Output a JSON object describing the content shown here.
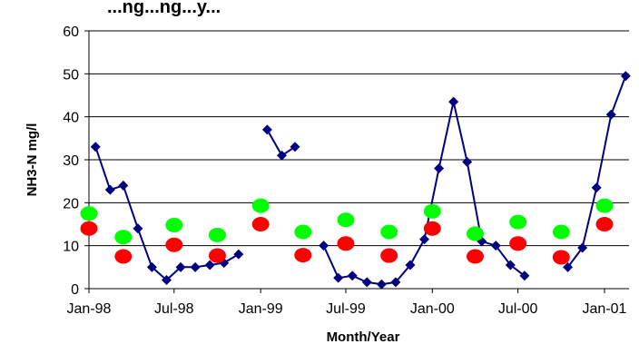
{
  "chart_data": {
    "type": "line",
    "title": "...ng...ng...y...",
    "xlabel": "Month/Year",
    "ylabel": "NH3-N mg/l",
    "ylim": [
      0,
      60
    ],
    "yticks": [
      0,
      10,
      20,
      30,
      40,
      50,
      60
    ],
    "x_tick_labels": [
      "Jan-98",
      "Jul-98",
      "Jan-99",
      "Jul-99",
      "Jan-00",
      "Jul-00",
      "Jan-01"
    ],
    "grid": "horizontal",
    "legend": "none",
    "colors": {
      "line": "#000080",
      "red": "#ff0000",
      "green": "#00ff00"
    },
    "series": [
      {
        "style": "line-diamond",
        "segments": [
          [
            [
              "1998-01-15",
              33
            ],
            [
              "1998-02-15",
              23
            ],
            [
              "1998-03-15",
              24
            ],
            [
              "1998-04-15",
              14
            ],
            [
              "1998-05-15",
              5
            ],
            [
              "1998-06-15",
              2
            ],
            [
              "1998-07-15",
              5
            ],
            [
              "1998-08-15",
              5
            ],
            [
              "1998-09-15",
              5.5
            ],
            [
              "1998-10-15",
              6
            ],
            [
              "1998-11-15",
              8
            ]
          ],
          [
            [
              "1999-01-15",
              37
            ],
            [
              "1999-02-15",
              31
            ],
            [
              "1999-03-15",
              33
            ]
          ],
          [
            [
              "1999-05-15",
              10
            ],
            [
              "1999-06-15",
              2.5
            ],
            [
              "1999-07-15",
              3
            ],
            [
              "1999-08-15",
              1.5
            ],
            [
              "1999-09-15",
              1
            ],
            [
              "1999-10-15",
              1.5
            ],
            [
              "1999-11-15",
              5.5
            ],
            [
              "1999-12-15",
              11.5
            ],
            [
              "2000-01-15",
              28
            ],
            [
              "2000-02-15",
              43.5
            ],
            [
              "2000-03-15",
              29.5
            ],
            [
              "2000-04-15",
              11
            ],
            [
              "2000-05-15",
              10
            ],
            [
              "2000-06-15",
              5.5
            ],
            [
              "2000-07-15",
              3
            ]
          ],
          [
            [
              "2000-10-15",
              5
            ],
            [
              "2000-11-15",
              9.5
            ],
            [
              "2000-12-15",
              23.5
            ],
            [
              "2001-01-15",
              40.5
            ],
            [
              "2001-02-15",
              49.5
            ]
          ]
        ]
      },
      {
        "style": "red-dot",
        "points": [
          [
            "1998-01-01",
            14
          ],
          [
            "1998-03-15",
            7.5
          ],
          [
            "1998-07-01",
            10.2
          ],
          [
            "1998-10-01",
            7.7
          ],
          [
            "1999-01-01",
            15
          ],
          [
            "1999-04-01",
            7.8
          ],
          [
            "1999-07-01",
            10.5
          ],
          [
            "1999-10-01",
            7.7
          ],
          [
            "2000-01-01",
            14
          ],
          [
            "2000-04-01",
            7.5
          ],
          [
            "2000-07-01",
            10.5
          ],
          [
            "2000-10-01",
            7.3
          ],
          [
            "2001-01-01",
            15
          ]
        ]
      },
      {
        "style": "green-dot",
        "points": [
          [
            "1998-01-01",
            17.5
          ],
          [
            "1998-03-15",
            12
          ],
          [
            "1998-07-01",
            14.8
          ],
          [
            "1998-10-01",
            12.5
          ],
          [
            "1999-01-01",
            19.3
          ],
          [
            "1999-04-01",
            13.2
          ],
          [
            "1999-07-01",
            16
          ],
          [
            "1999-10-01",
            13.2
          ],
          [
            "2000-01-01",
            18
          ],
          [
            "2000-04-01",
            12.8
          ],
          [
            "2000-07-01",
            15.5
          ],
          [
            "2000-10-01",
            13.2
          ],
          [
            "2001-01-01",
            19.3
          ]
        ]
      }
    ]
  }
}
